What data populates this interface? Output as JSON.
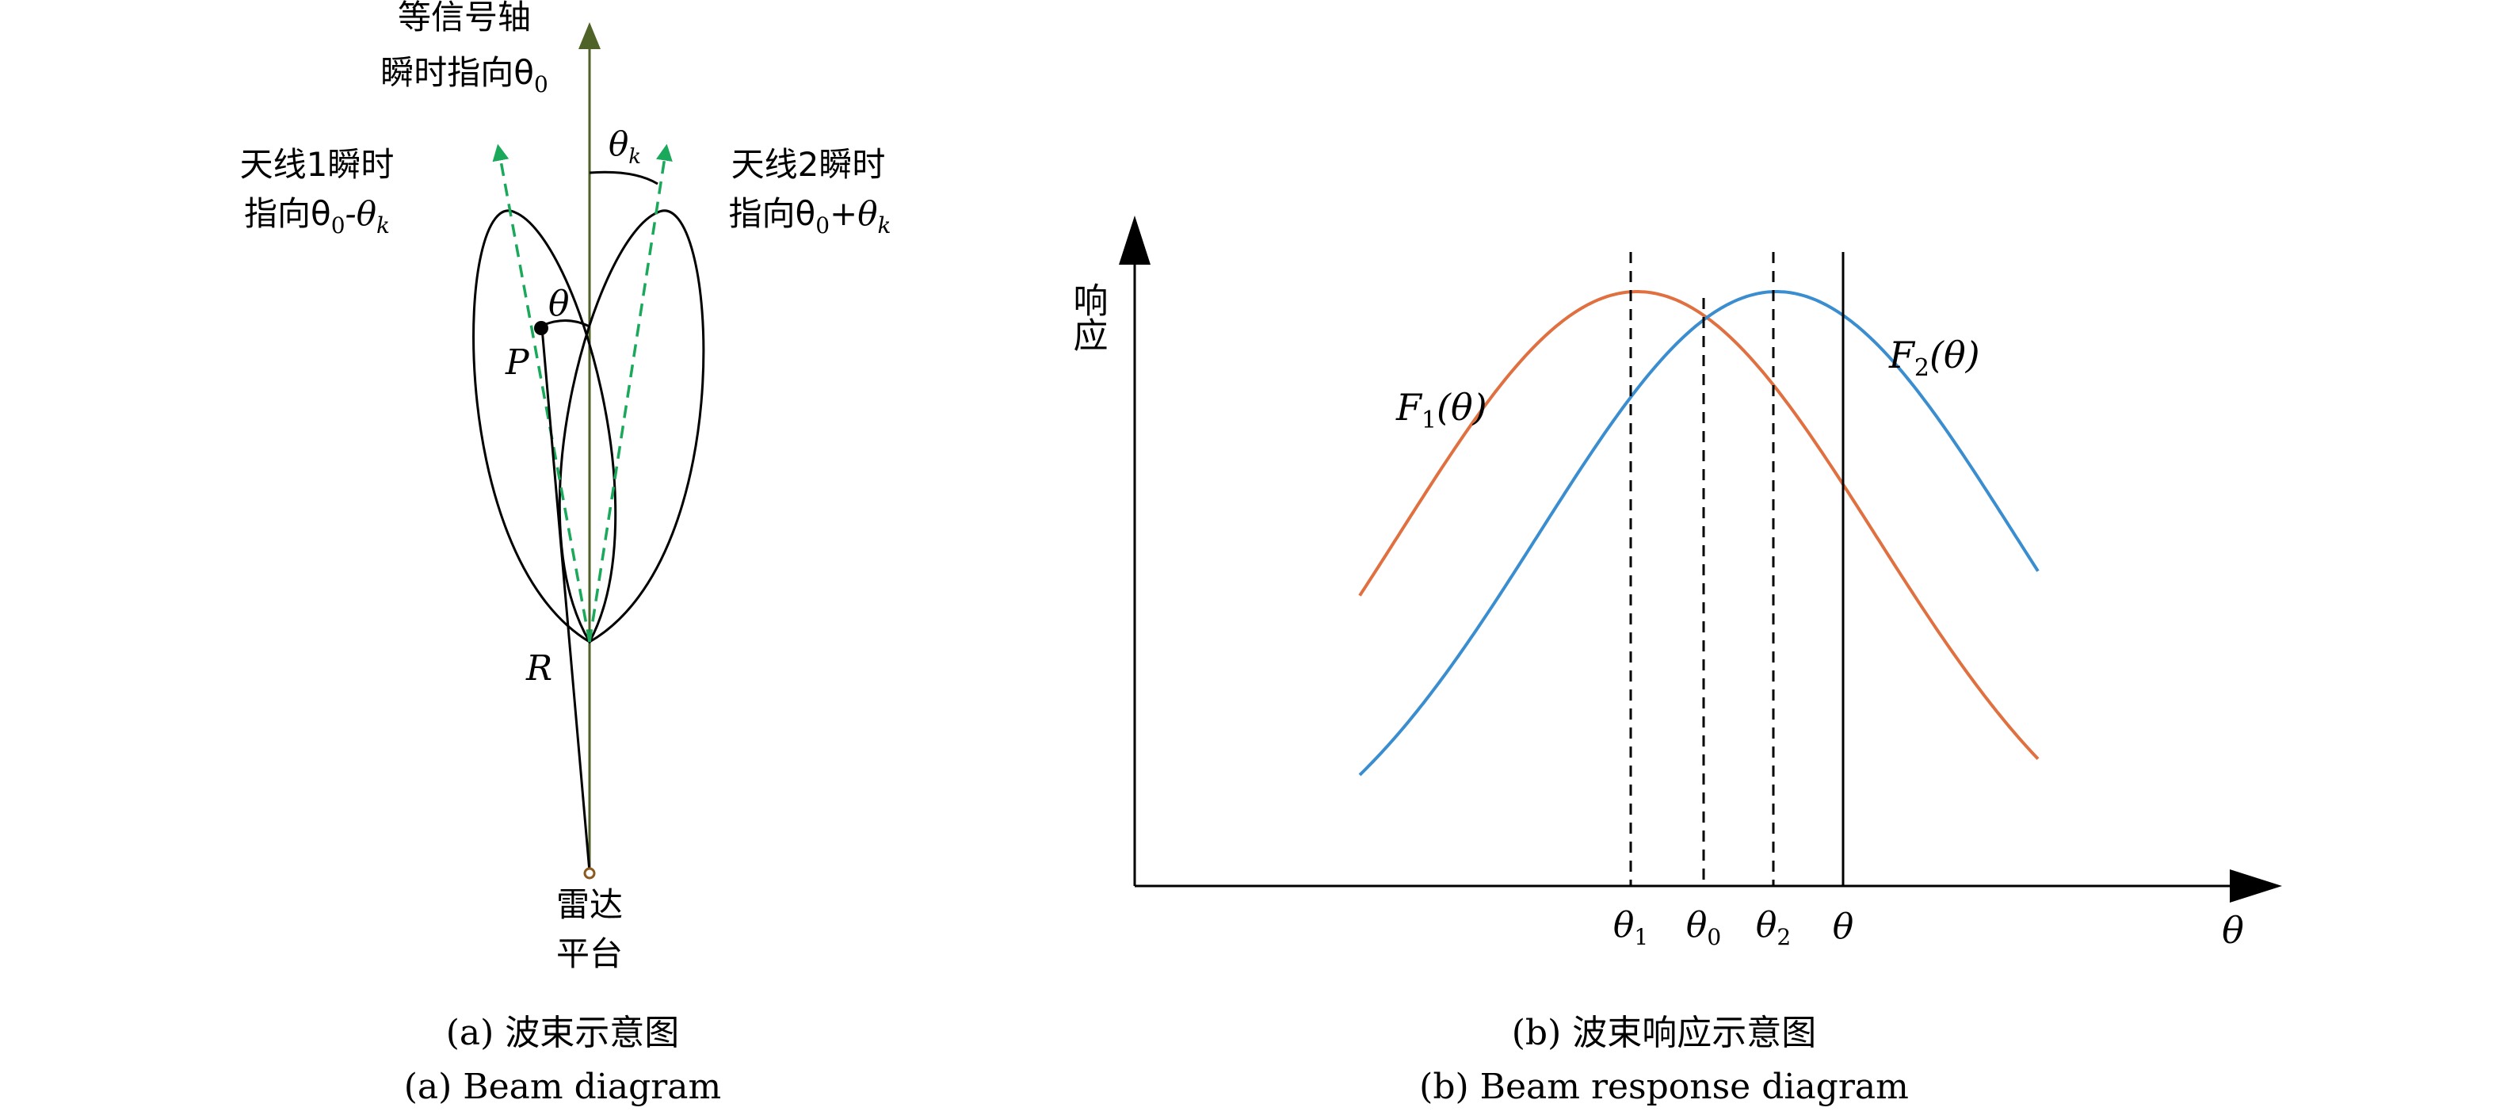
{
  "colors": {
    "axis_arrow": "#4f6228",
    "antenna_dir": "#1aa85a",
    "f1_curve": "#e07040",
    "f2_curve": "#3a8ed0",
    "ink": "#000000"
  },
  "diagram_a": {
    "equisignal_axis": "等信号轴",
    "instant_dir": "瞬时指向θ",
    "instant_dir_sub": "0",
    "antenna1_line1": "天线1瞬时",
    "antenna1_line2": "指向θ",
    "antenna1_sub0": "0",
    "antenna1_op": "-θ",
    "antenna1_subk": "k",
    "antenna2_line1": "天线2瞬时",
    "antenna2_line2": "指向θ",
    "antenna2_sub0": "0",
    "antenna2_op": "+θ",
    "antenna2_subk": "k",
    "theta_k": "θ",
    "theta_k_sub": "k",
    "theta": "θ",
    "point_p": "P",
    "range_r": "R",
    "radar_line1": "雷达",
    "radar_line2": "平台",
    "caption_cn": "(a) 波束示意图",
    "caption_en": "(a) Beam diagram"
  },
  "diagram_b": {
    "y_axis_label": "响应",
    "x_axis_label": "θ",
    "f1_label": "F",
    "f1_sub": "1",
    "f1_arg": "(θ)",
    "f2_label": "F",
    "f2_sub": "2",
    "f2_arg": "(θ)",
    "ticks": [
      {
        "sym": "θ",
        "sub": "1"
      },
      {
        "sym": "θ",
        "sub": "0"
      },
      {
        "sym": "θ",
        "sub": "2"
      },
      {
        "sym": "θ",
        "sub": ""
      }
    ],
    "caption_cn": "(b) 波束响应示意图",
    "caption_en": "(b) Beam response diagram"
  }
}
